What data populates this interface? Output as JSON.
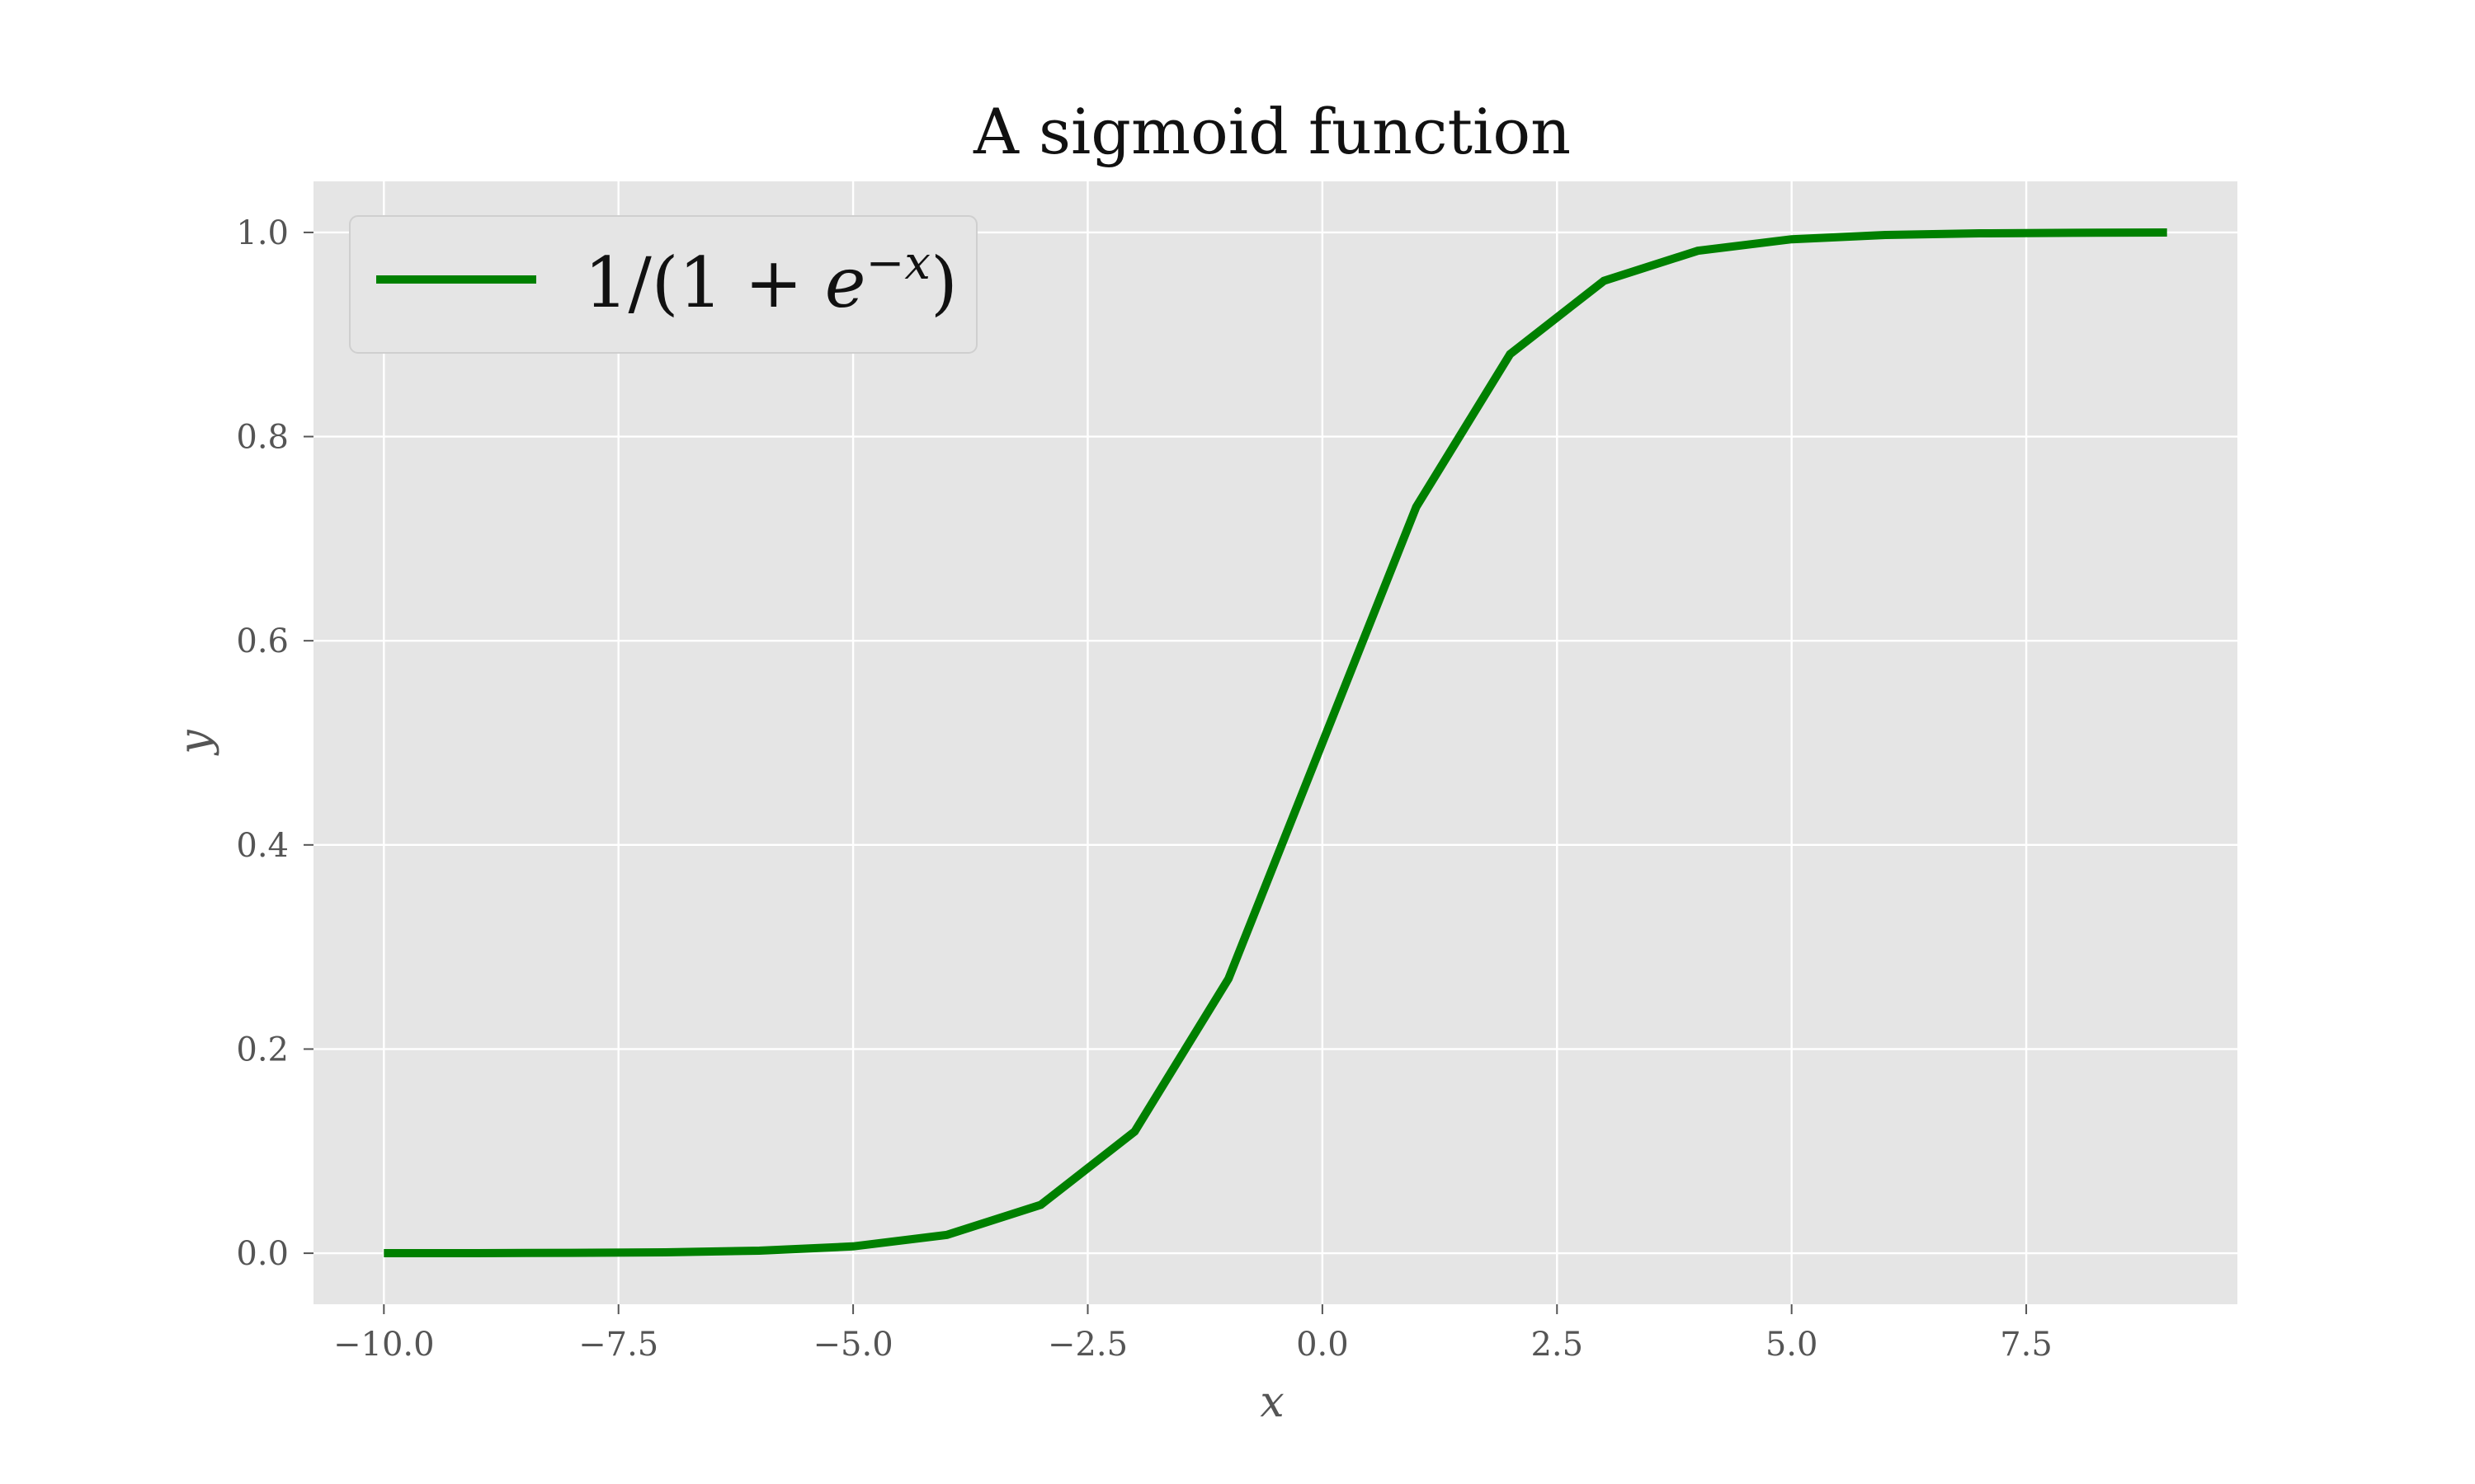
{
  "chart_data": {
    "type": "line",
    "title": "A sigmoid function",
    "xlabel": "x",
    "ylabel": "y",
    "xlim": [
      -10.75,
      9.75
    ],
    "ylim": [
      -0.05,
      1.05
    ],
    "xticks": [
      -10.0,
      -7.5,
      -5.0,
      -2.5,
      0.0,
      2.5,
      5.0,
      7.5
    ],
    "xtick_labels": [
      "−10.0",
      "−7.5",
      "−5.0",
      "−2.5",
      "0.0",
      "2.5",
      "5.0",
      "7.5"
    ],
    "yticks": [
      0.0,
      0.2,
      0.4,
      0.6,
      0.8,
      1.0
    ],
    "ytick_labels": [
      "0.0",
      "0.2",
      "0.4",
      "0.6",
      "0.8",
      "1.0"
    ],
    "grid": true,
    "legend_position": "top-left",
    "background_color": "#e5e5e5",
    "grid_color": "#ffffff",
    "series": [
      {
        "name": "1/(1 + e−x)",
        "legend_parts": {
          "prefix": "1/(1 + ",
          "base": "e",
          "exponent": "−x",
          "suffix": ")"
        },
        "color": "#008000",
        "x": [
          -10,
          -9,
          -8,
          -7,
          -6,
          -5,
          -4,
          -3,
          -2,
          -1,
          0,
          1,
          2,
          3,
          4,
          5,
          6,
          7,
          8,
          9
        ],
        "y": [
          4.54e-05,
          0.0001234,
          0.0003354,
          0.0009111,
          0.0024726,
          0.0066929,
          0.0179862,
          0.0474259,
          0.1192029,
          0.2689414,
          0.5,
          0.7310586,
          0.8807971,
          0.9525741,
          0.9820138,
          0.9933071,
          0.9975274,
          0.9990889,
          0.9996646,
          0.9998766
        ]
      }
    ]
  }
}
